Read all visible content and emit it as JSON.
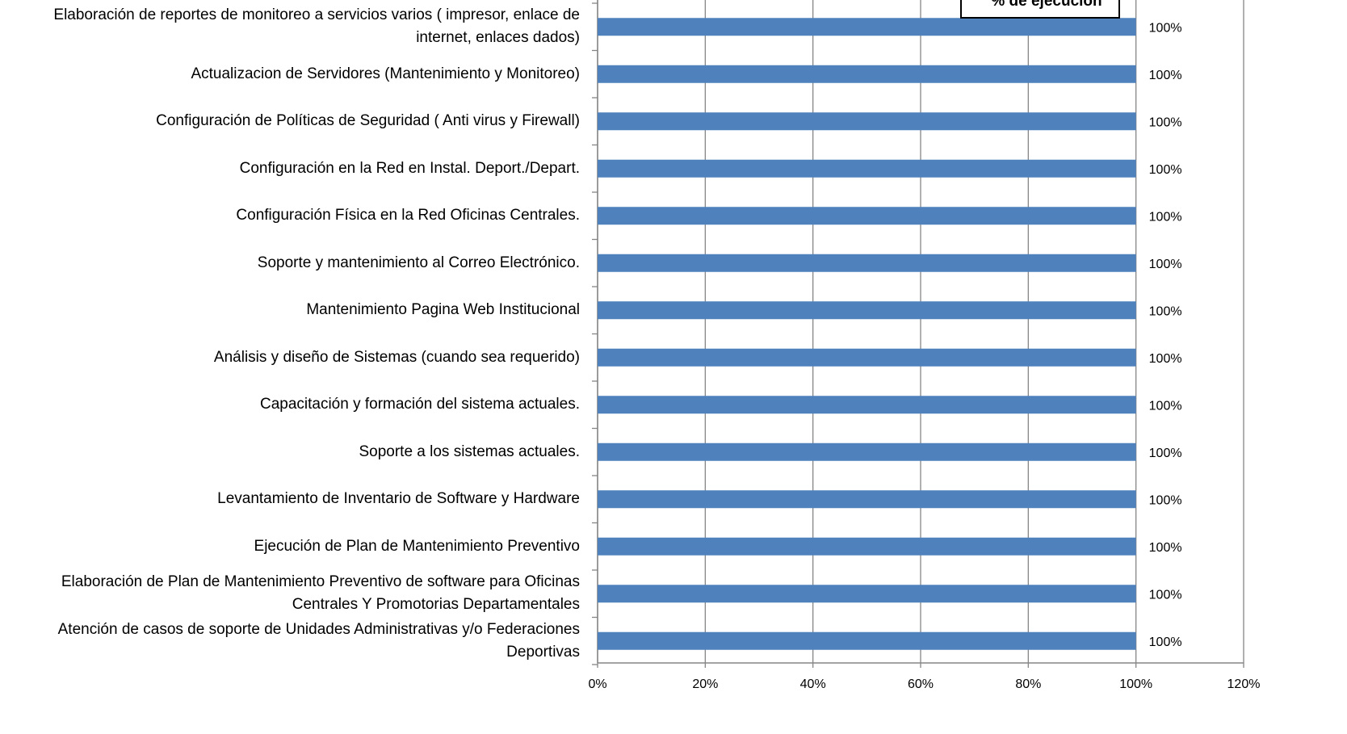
{
  "chart_data": {
    "type": "bar",
    "orientation": "horizontal",
    "categories": [
      "Elaboración de reportes de monitoreo a servicios varios ( impresor, enlace de internet, enlaces dados)",
      "Actualizacion de Servidores (Mantenimiento y Monitoreo)",
      "Configuración de Políticas de Seguridad ( Anti virus y Firewall)",
      "Configuración en la Red en Instal.  Deport./Depart.",
      "Configuración Física en la Red Oficinas Centrales.",
      "Soporte y mantenimiento al  Correo Electrónico.",
      "Mantenimiento Pagina Web Institucional",
      "Análisis y diseño de Sistemas (cuando sea requerido)",
      "Capacitación y formación del sistema actuales.",
      "Soporte a los sistemas actuales.",
      "Levantamiento de Inventario de Software y Hardware",
      "Ejecución de Plan de Mantenimiento Preventivo",
      "Elaboración de Plan de Mantenimiento Preventivo de software para Oficinas Centrales Y Promotorias Departamentales",
      "Atención de casos de soporte de Unidades Administrativas y/o Federaciones Deportivas"
    ],
    "series": [
      {
        "name": "% de ejecución",
        "color": "#4f81bd",
        "values": [
          100,
          100,
          100,
          100,
          100,
          100,
          100,
          100,
          100,
          100,
          100,
          100,
          100,
          100
        ],
        "value_labels": [
          "100%",
          "100%",
          "100%",
          "100%",
          "100%",
          "100%",
          "100%",
          "100%",
          "100%",
          "100%",
          "100%",
          "100%",
          "100%",
          "100%"
        ]
      }
    ],
    "xlim": [
      0,
      120
    ],
    "xticks": [
      {
        "value": 0,
        "label": "0%"
      },
      {
        "value": 20,
        "label": "20%"
      },
      {
        "value": 40,
        "label": "40%"
      },
      {
        "value": 60,
        "label": "60%"
      },
      {
        "value": 80,
        "label": "80%"
      },
      {
        "value": 100,
        "label": "100%"
      },
      {
        "value": 120,
        "label": "120%"
      }
    ],
    "grid": true,
    "legend": "top-right"
  }
}
